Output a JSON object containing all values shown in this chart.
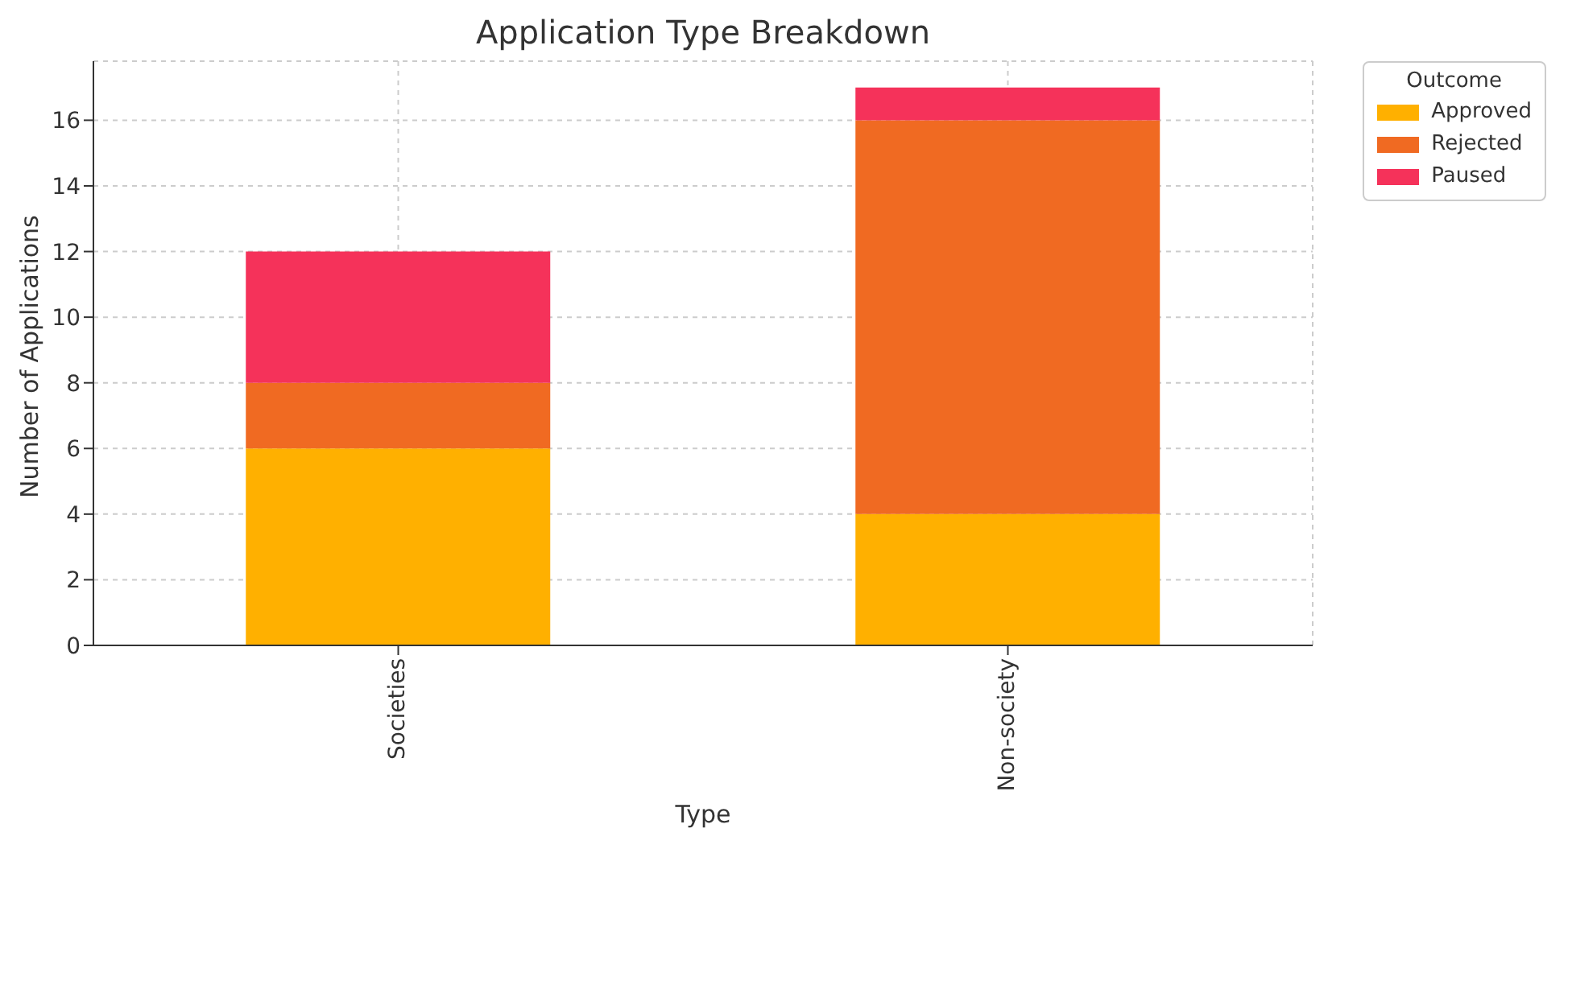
{
  "chart_data": {
    "type": "bar",
    "title": "Application Type Breakdown",
    "xlabel": "Type",
    "ylabel": "Number of Applications",
    "legend_title": "Outcome",
    "categories": [
      "Societies",
      "Non-society"
    ],
    "stacked": true,
    "series": [
      {
        "name": "Approved",
        "color": "#ffb000",
        "values": [
          6,
          4
        ]
      },
      {
        "name": "Rejected",
        "color": "#f06a22",
        "values": [
          2,
          12
        ]
      },
      {
        "name": "Paused",
        "color": "#f5325a",
        "values": [
          4,
          1
        ]
      }
    ],
    "ylim": [
      0,
      17.8
    ],
    "yticks": [
      0,
      2,
      4,
      6,
      8,
      10,
      12,
      14,
      16
    ],
    "grid": true,
    "legend": "top right"
  }
}
